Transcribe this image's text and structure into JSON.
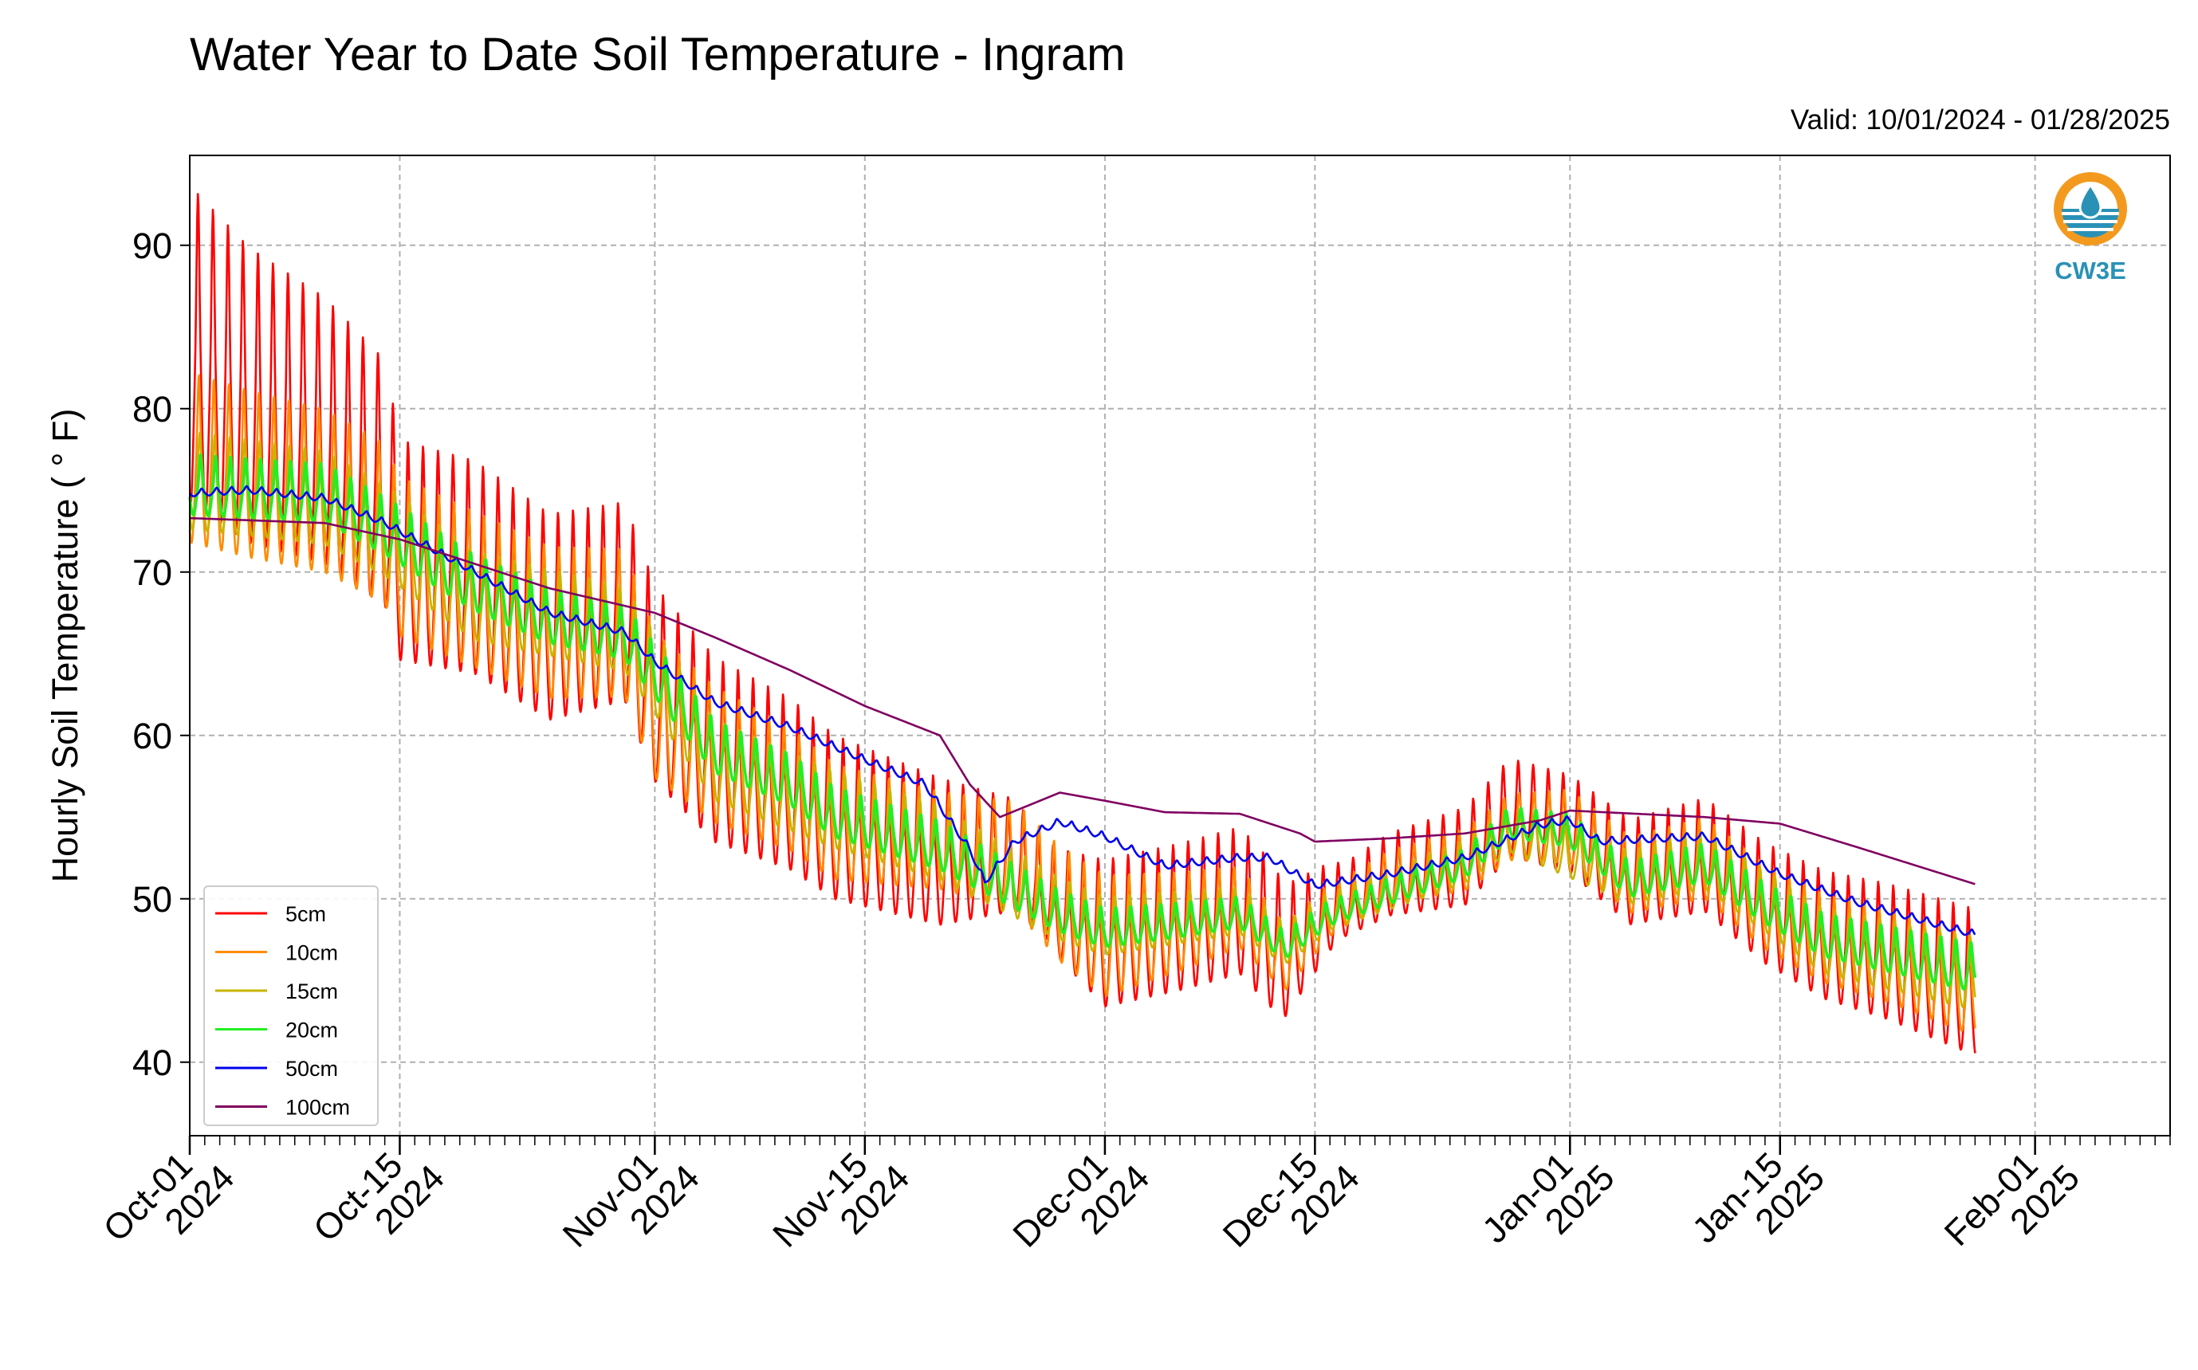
{
  "page": {
    "title": "Water Year to Date Soil Temperature - Ingram",
    "valid": "Valid: 10/01/2024 - 01/28/2025"
  },
  "logo": {
    "text": "CW3E",
    "icon": "water-drop-logo-icon"
  },
  "chart_data": {
    "type": "line",
    "title": "Water Year to Date Soil Temperature - Ingram",
    "subtitle": "Valid: 10/01/2024 - 01/28/2025",
    "xlabel": "",
    "ylabel": "Hourly Soil Temperature ( ° F)",
    "x_axis": {
      "type": "date",
      "range": [
        "2024-10-01",
        "2025-02-10"
      ],
      "ticks": [
        {
          "date": "2024-10-01",
          "l1": "Oct-01",
          "l2": "2024"
        },
        {
          "date": "2024-10-15",
          "l1": "Oct-15",
          "l2": "2024"
        },
        {
          "date": "2024-11-01",
          "l1": "Nov-01",
          "l2": "2024"
        },
        {
          "date": "2024-11-15",
          "l1": "Nov-15",
          "l2": "2024"
        },
        {
          "date": "2024-12-01",
          "l1": "Dec-01",
          "l2": "2024"
        },
        {
          "date": "2024-12-15",
          "l1": "Dec-15",
          "l2": "2024"
        },
        {
          "date": "2025-01-01",
          "l1": "Jan-01",
          "l2": "2025"
        },
        {
          "date": "2025-01-15",
          "l1": "Jan-15",
          "l2": "2025"
        },
        {
          "date": "2025-02-01",
          "l1": "Feb-01",
          "l2": "2025"
        }
      ]
    },
    "y_axis": {
      "range": [
        35.5,
        95.5
      ],
      "ticks": [
        40,
        50,
        60,
        70,
        80,
        90
      ]
    },
    "grid": true,
    "legend": "lower-left",
    "series": [
      {
        "name": "5cm",
        "color": "#ff0000",
        "data": [
          [
            "2024-10-01",
            82
          ],
          [
            "2024-10-05",
            79
          ],
          [
            "2024-10-10",
            77
          ],
          [
            "2024-10-14",
            74
          ],
          [
            "2024-10-15",
            70
          ],
          [
            "2024-10-20",
            69
          ],
          [
            "2024-10-25",
            66
          ],
          [
            "2024-10-30",
            67
          ],
          [
            "2024-11-01",
            62
          ],
          [
            "2024-11-05",
            58
          ],
          [
            "2024-11-10",
            56
          ],
          [
            "2024-11-13",
            54
          ],
          [
            "2024-11-20",
            52
          ],
          [
            "2024-11-25",
            52
          ],
          [
            "2024-11-28",
            49
          ],
          [
            "2024-12-01",
            47
          ],
          [
            "2024-12-06",
            48
          ],
          [
            "2024-12-10",
            49
          ],
          [
            "2024-12-13",
            46
          ],
          [
            "2024-12-16",
            49
          ],
          [
            "2024-12-20",
            51
          ],
          [
            "2024-12-25",
            52
          ],
          [
            "2024-12-28",
            55
          ],
          [
            "2025-01-01",
            54
          ],
          [
            "2025-01-05",
            51
          ],
          [
            "2025-01-10",
            52
          ],
          [
            "2025-01-14",
            49
          ],
          [
            "2025-01-18",
            47
          ],
          [
            "2025-01-22",
            46
          ],
          [
            "2025-01-28",
            44
          ]
        ],
        "daily_amplitude": [
          [
            "2024-10-01",
            13
          ],
          [
            "2024-10-14",
            10
          ],
          [
            "2024-10-15",
            9
          ],
          [
            "2024-11-01",
            8
          ],
          [
            "2024-11-10",
            7
          ],
          [
            "2024-11-20",
            6
          ],
          [
            "2024-11-27",
            4
          ],
          [
            "2024-12-01",
            6
          ],
          [
            "2024-12-12",
            6
          ],
          [
            "2024-12-17",
            3
          ],
          [
            "2024-12-25",
            4
          ],
          [
            "2025-01-01",
            4
          ],
          [
            "2025-01-15",
            5
          ],
          [
            "2025-01-28",
            6
          ]
        ]
      },
      {
        "name": "10cm",
        "color": "#ff8c00",
        "data": [
          [
            "2024-10-01",
            76
          ],
          [
            "2024-10-05",
            75
          ],
          [
            "2024-10-10",
            74
          ],
          [
            "2024-10-14",
            72
          ],
          [
            "2024-10-15",
            70
          ],
          [
            "2024-10-20",
            68
          ],
          [
            "2024-10-25",
            66
          ],
          [
            "2024-10-30",
            66
          ],
          [
            "2024-11-01",
            61
          ],
          [
            "2024-11-05",
            58
          ],
          [
            "2024-11-10",
            56
          ],
          [
            "2024-11-13",
            54
          ],
          [
            "2024-11-20",
            53
          ],
          [
            "2024-11-25",
            52
          ],
          [
            "2024-11-28",
            49
          ],
          [
            "2024-12-01",
            47
          ],
          [
            "2024-12-06",
            48
          ],
          [
            "2024-12-10",
            49
          ],
          [
            "2024-12-13",
            46
          ],
          [
            "2024-12-16",
            49
          ],
          [
            "2024-12-20",
            51
          ],
          [
            "2024-12-25",
            52
          ],
          [
            "2024-12-28",
            54
          ],
          [
            "2025-01-01",
            54
          ],
          [
            "2025-01-05",
            51
          ],
          [
            "2025-01-10",
            52
          ],
          [
            "2025-01-14",
            49
          ],
          [
            "2025-01-18",
            47
          ],
          [
            "2025-01-22",
            46
          ],
          [
            "2025-01-28",
            44
          ]
        ],
        "daily_amplitude": [
          [
            "2024-10-01",
            7
          ],
          [
            "2024-11-01",
            6
          ],
          [
            "2024-11-20",
            4
          ],
          [
            "2024-12-01",
            5
          ],
          [
            "2024-12-17",
            2
          ],
          [
            "2025-01-01",
            3
          ],
          [
            "2025-01-28",
            4
          ]
        ]
      },
      {
        "name": "15cm",
        "color": "#c8b400",
        "data": [
          [
            "2024-10-01",
            75
          ],
          [
            "2024-10-10",
            74
          ],
          [
            "2024-10-14",
            72
          ],
          [
            "2024-10-20",
            68
          ],
          [
            "2024-10-30",
            66
          ],
          [
            "2024-11-05",
            58
          ],
          [
            "2024-11-13",
            55
          ],
          [
            "2024-11-20",
            53
          ],
          [
            "2024-11-28",
            49
          ],
          [
            "2024-12-01",
            48
          ],
          [
            "2024-12-10",
            49
          ],
          [
            "2024-12-13",
            47
          ],
          [
            "2024-12-16",
            49
          ],
          [
            "2024-12-25",
            52
          ],
          [
            "2024-12-28",
            54
          ],
          [
            "2025-01-05",
            51
          ],
          [
            "2025-01-10",
            52
          ],
          [
            "2025-01-18",
            47
          ],
          [
            "2025-01-28",
            45
          ]
        ],
        "daily_amplitude": [
          [
            "2024-10-01",
            4
          ],
          [
            "2024-11-20",
            3
          ],
          [
            "2024-12-17",
            1.5
          ],
          [
            "2025-01-28",
            3
          ]
        ]
      },
      {
        "name": "20cm",
        "color": "#22ee22",
        "data": [
          [
            "2024-10-01",
            75
          ],
          [
            "2024-10-10",
            74.5
          ],
          [
            "2024-10-14",
            72.5
          ],
          [
            "2024-10-20",
            69
          ],
          [
            "2024-10-25",
            67
          ],
          [
            "2024-10-30",
            66
          ],
          [
            "2024-11-05",
            59
          ],
          [
            "2024-11-10",
            57
          ],
          [
            "2024-11-13",
            55
          ],
          [
            "2024-11-20",
            53
          ],
          [
            "2024-11-28",
            49
          ],
          [
            "2024-12-01",
            48
          ],
          [
            "2024-12-06",
            48.5
          ],
          [
            "2024-12-10",
            49
          ],
          [
            "2024-12-13",
            47
          ],
          [
            "2024-12-16",
            49
          ],
          [
            "2024-12-25",
            52
          ],
          [
            "2024-12-28",
            54.5
          ],
          [
            "2025-01-01",
            54
          ],
          [
            "2025-01-05",
            51
          ],
          [
            "2025-01-10",
            52
          ],
          [
            "2025-01-14",
            49.5
          ],
          [
            "2025-01-18",
            47.5
          ],
          [
            "2025-01-28",
            45.5
          ]
        ],
        "daily_amplitude": [
          [
            "2024-10-01",
            2.5
          ],
          [
            "2024-11-20",
            2
          ],
          [
            "2024-12-17",
            1
          ],
          [
            "2025-01-28",
            2
          ]
        ]
      },
      {
        "name": "50cm",
        "color": "#0000ee",
        "data": [
          [
            "2024-10-01",
            74.8
          ],
          [
            "2024-10-05",
            75
          ],
          [
            "2024-10-10",
            74.5
          ],
          [
            "2024-10-14",
            73
          ],
          [
            "2024-10-20",
            70
          ],
          [
            "2024-10-25",
            67.5
          ],
          [
            "2024-10-30",
            66.3
          ],
          [
            "2024-11-01",
            64.5
          ],
          [
            "2024-11-05",
            62
          ],
          [
            "2024-11-10",
            60.5
          ],
          [
            "2024-11-15",
            58.5
          ],
          [
            "2024-11-19",
            57
          ],
          [
            "2024-11-22",
            53
          ],
          [
            "2024-11-23",
            51
          ],
          [
            "2024-11-25",
            53.5
          ],
          [
            "2024-11-28",
            54.7
          ],
          [
            "2024-12-01",
            53.8
          ],
          [
            "2024-12-05",
            52
          ],
          [
            "2024-12-10",
            52.5
          ],
          [
            "2024-12-12",
            52.5
          ],
          [
            "2024-12-15",
            50.8
          ],
          [
            "2024-12-20",
            51.5
          ],
          [
            "2024-12-25",
            52.5
          ],
          [
            "2024-12-30",
            54.5
          ],
          [
            "2025-01-01",
            54.8
          ],
          [
            "2025-01-03",
            53.5
          ],
          [
            "2025-01-10",
            53.8
          ],
          [
            "2025-01-15",
            51.5
          ],
          [
            "2025-01-20",
            49.8
          ],
          [
            "2025-01-28",
            47.8
          ]
        ],
        "daily_amplitude": [
          [
            "2024-10-01",
            0.3
          ],
          [
            "2025-01-28",
            0.3
          ]
        ]
      },
      {
        "name": "100cm",
        "color": "#800060",
        "data": [
          [
            "2024-10-01",
            73.3
          ],
          [
            "2024-10-10",
            73
          ],
          [
            "2024-10-15",
            72
          ],
          [
            "2024-10-20",
            70.5
          ],
          [
            "2024-10-25",
            69
          ],
          [
            "2024-11-01",
            67.5
          ],
          [
            "2024-11-05",
            66
          ],
          [
            "2024-11-10",
            64
          ],
          [
            "2024-11-15",
            61.8
          ],
          [
            "2024-11-20",
            60
          ],
          [
            "2024-11-22",
            57
          ],
          [
            "2024-11-24",
            55
          ],
          [
            "2024-11-28",
            56.5
          ],
          [
            "2024-12-01",
            56
          ],
          [
            "2024-12-05",
            55.3
          ],
          [
            "2024-12-10",
            55.2
          ],
          [
            "2024-12-14",
            54
          ],
          [
            "2024-12-15",
            53.5
          ],
          [
            "2024-12-20",
            53.7
          ],
          [
            "2024-12-25",
            54
          ],
          [
            "2024-12-30",
            54.8
          ],
          [
            "2025-01-01",
            55.4
          ],
          [
            "2025-01-10",
            55
          ],
          [
            "2025-01-15",
            54.6
          ],
          [
            "2025-01-20",
            53.2
          ],
          [
            "2025-01-28",
            50.9
          ]
        ],
        "daily_amplitude": [
          [
            "2024-10-01",
            0
          ],
          [
            "2025-01-28",
            0
          ]
        ]
      }
    ]
  }
}
